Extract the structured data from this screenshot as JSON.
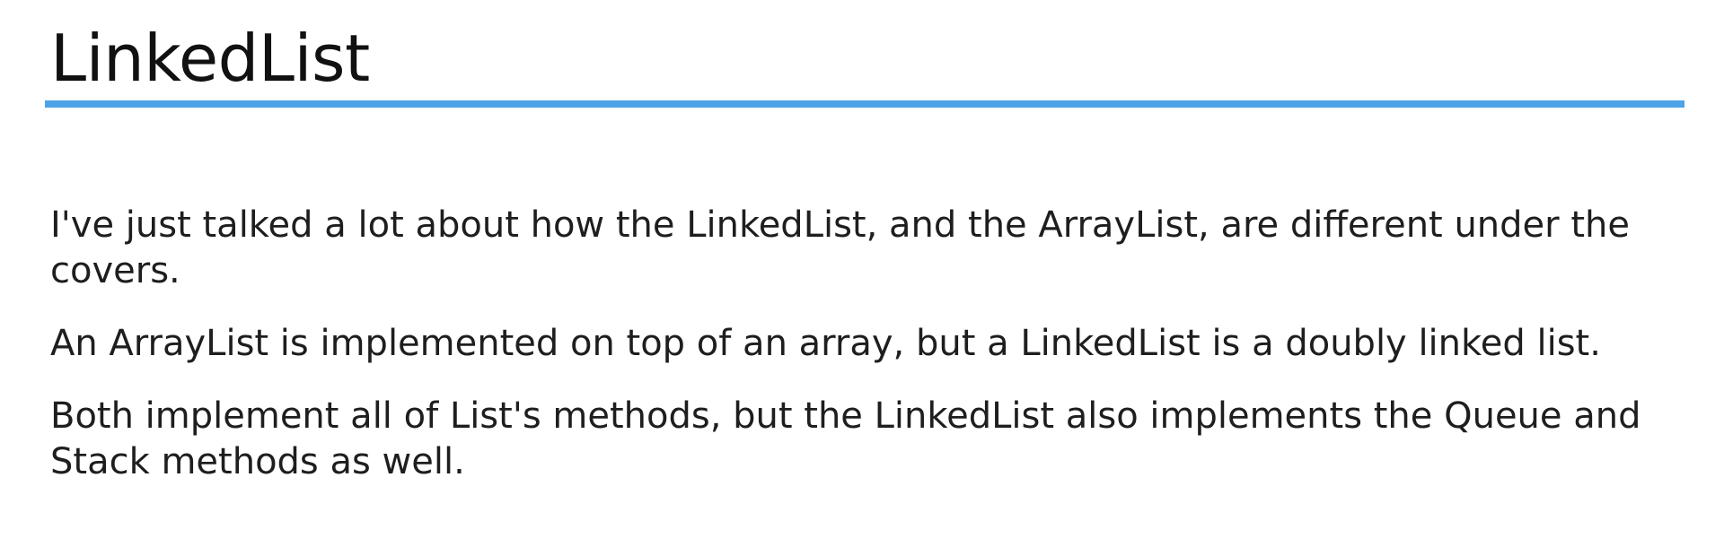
{
  "slide": {
    "title": "LinkedList",
    "accent_color": "#4da3e6",
    "paragraphs": [
      "I've just talked a lot about how the LinkedList, and the ArrayList, are different under the covers.",
      "An ArrayList is implemented on top of an array, but a LinkedList is a doubly linked list.",
      "Both implement all of List's methods, but the LinkedList also implements the Queue and Stack methods as well."
    ]
  }
}
